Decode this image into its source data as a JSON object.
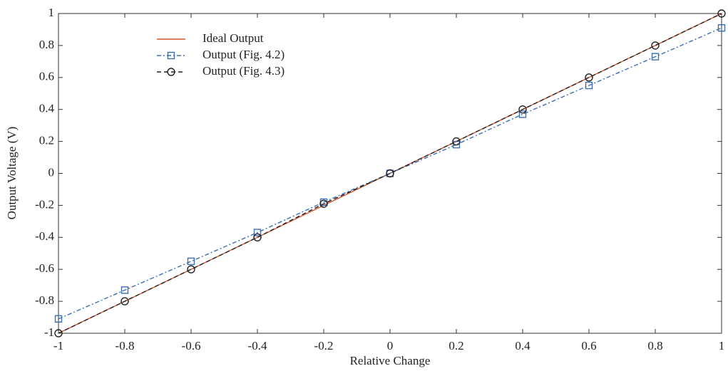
{
  "chart_data": {
    "type": "line",
    "xlabel": "Relative Change",
    "ylabel": "Output Voltage (V)",
    "x": [
      -1,
      -0.8,
      -0.6,
      -0.4,
      -0.2,
      0,
      0.2,
      0.4,
      0.6,
      0.8,
      1
    ],
    "series": [
      {
        "name": "Ideal Output",
        "color": "#d9542b",
        "dash": "solid",
        "marker": "none",
        "values": [
          -1,
          -0.8,
          -0.6,
          -0.4,
          -0.2,
          0,
          0.2,
          0.4,
          0.6,
          0.8,
          1
        ]
      },
      {
        "name": "Output (Fig. 4.2)",
        "color": "#3b6fb6",
        "dash": "dashdot",
        "marker": "square",
        "values": [
          -0.91,
          -0.73,
          -0.55,
          -0.37,
          -0.18,
          0,
          0.18,
          0.37,
          0.55,
          0.73,
          0.91
        ]
      },
      {
        "name": "Output (Fig. 4.3)",
        "color": "#222222",
        "dash": "dashed",
        "marker": "circle",
        "values": [
          -1,
          -0.8,
          -0.6,
          -0.4,
          -0.19,
          0,
          0.2,
          0.4,
          0.6,
          0.8,
          1
        ]
      }
    ],
    "xlim": [
      -1,
      1
    ],
    "ylim": [
      -1,
      1
    ],
    "xticks": [
      -1,
      -0.8,
      -0.6,
      -0.4,
      -0.2,
      0,
      0.2,
      0.4,
      0.6,
      0.8,
      1
    ],
    "yticks": [
      -1,
      -0.8,
      -0.6,
      -0.4,
      -0.2,
      0,
      0.2,
      0.4,
      0.6,
      0.8,
      1
    ],
    "grid": false,
    "legend": "upper left"
  }
}
